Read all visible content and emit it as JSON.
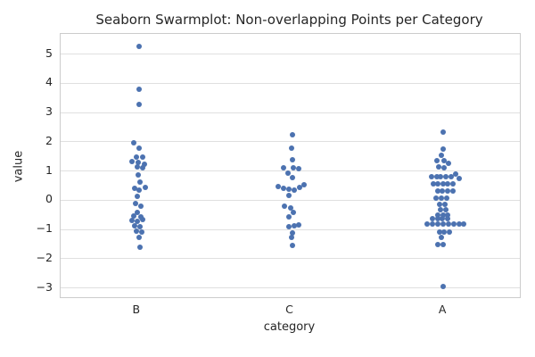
{
  "chart_data": {
    "type": "scatter",
    "variant": "seaborn-swarmplot",
    "title": "Seaborn Swarmplot: Non-overlapping Points per Category",
    "xlabel": "category",
    "ylabel": "value",
    "grid": true,
    "legend": false,
    "point_color": "#4c72b0",
    "grid_color": "#e0e0e0",
    "spine_color": "#cccccc",
    "text_color": "#262626",
    "ylim": [
      -3.32,
      5.69
    ],
    "yticks": [
      {
        "label": "5",
        "value": 5
      },
      {
        "label": "4",
        "value": 4
      },
      {
        "label": "3",
        "value": 3
      },
      {
        "label": "2",
        "value": 2
      },
      {
        "label": "1",
        "value": 1
      },
      {
        "label": "0",
        "value": 0
      },
      {
        "label": "−1",
        "value": -1
      },
      {
        "label": "−2",
        "value": -2
      },
      {
        "label": "−3",
        "value": -3
      }
    ],
    "categories": [
      "B",
      "C",
      "A"
    ],
    "series": [
      {
        "category": "B",
        "points": [
          [
            2,
            5.26
          ],
          [
            2,
            3.81
          ],
          [
            2,
            3.28
          ],
          [
            -4,
            1.97
          ],
          [
            2,
            1.78
          ],
          [
            -1,
            1.49
          ],
          [
            6,
            1.46
          ],
          [
            -6,
            1.31
          ],
          [
            1,
            1.28
          ],
          [
            8,
            1.22
          ],
          [
            0,
            1.15
          ],
          [
            6,
            1.1
          ],
          [
            1,
            0.86
          ],
          [
            3,
            0.63
          ],
          [
            -3,
            0.4
          ],
          [
            2,
            0.35
          ],
          [
            9,
            0.45
          ],
          [
            0,
            0.14
          ],
          [
            -2,
            -0.11
          ],
          [
            4,
            -0.21
          ],
          [
            0,
            -0.42
          ],
          [
            -4,
            -0.54
          ],
          [
            4,
            -0.56
          ],
          [
            -6,
            -0.7
          ],
          [
            0,
            -0.73
          ],
          [
            6,
            -0.66
          ],
          [
            -3,
            -0.88
          ],
          [
            3,
            -0.91
          ],
          [
            -1,
            -1.07
          ],
          [
            5,
            -1.1
          ],
          [
            2,
            -1.28
          ],
          [
            3,
            -1.6
          ]
        ]
      },
      {
        "category": "C",
        "points": [
          [
            2,
            2.25
          ],
          [
            1,
            1.78
          ],
          [
            2,
            1.37
          ],
          [
            -8,
            1.1
          ],
          [
            3,
            1.12
          ],
          [
            9,
            1.08
          ],
          [
            -3,
            0.92
          ],
          [
            2,
            0.77
          ],
          [
            -14,
            0.47
          ],
          [
            -8,
            0.42
          ],
          [
            -2,
            0.38
          ],
          [
            4,
            0.36
          ],
          [
            10,
            0.44
          ],
          [
            15,
            0.53
          ],
          [
            -2,
            0.17
          ],
          [
            -7,
            -0.2
          ],
          [
            0,
            -0.26
          ],
          [
            3,
            -0.41
          ],
          [
            -2,
            -0.57
          ],
          [
            -2,
            -0.92
          ],
          [
            4,
            -0.89
          ],
          [
            9,
            -0.84
          ],
          [
            2,
            -1.12
          ],
          [
            1,
            -1.28
          ],
          [
            2,
            -1.55
          ]
        ]
      },
      {
        "category": "A",
        "points": [
          [
            0,
            2.33
          ],
          [
            0,
            1.75
          ],
          [
            -2,
            1.54
          ],
          [
            -7,
            1.36
          ],
          [
            1,
            1.34
          ],
          [
            6,
            1.27
          ],
          [
            -5,
            1.13
          ],
          [
            1,
            1.1
          ],
          [
            -13,
            0.8
          ],
          [
            -7,
            0.8
          ],
          [
            -3,
            0.8
          ],
          [
            3,
            0.8
          ],
          [
            9,
            0.8
          ],
          [
            14,
            0.88
          ],
          [
            18,
            0.75
          ],
          [
            -11,
            0.57
          ],
          [
            -6,
            0.57
          ],
          [
            0,
            0.57
          ],
          [
            5,
            0.57
          ],
          [
            11,
            0.55
          ],
          [
            -6,
            0.3
          ],
          [
            -1,
            0.3
          ],
          [
            5,
            0.3
          ],
          [
            11,
            0.3
          ],
          [
            -8,
            0.08
          ],
          [
            -2,
            0.08
          ],
          [
            4,
            0.08
          ],
          [
            -4,
            -0.14
          ],
          [
            2,
            -0.14
          ],
          [
            -3,
            -0.33
          ],
          [
            3,
            -0.33
          ],
          [
            -6,
            -0.5
          ],
          [
            0,
            -0.5
          ],
          [
            5,
            -0.5
          ],
          [
            -12,
            -0.64
          ],
          [
            -6,
            -0.64
          ],
          [
            -1,
            -0.64
          ],
          [
            5,
            -0.64
          ],
          [
            -18,
            -0.82
          ],
          [
            -12,
            -0.82
          ],
          [
            -6,
            -0.82
          ],
          [
            0,
            -0.82
          ],
          [
            6,
            -0.82
          ],
          [
            12,
            -0.82
          ],
          [
            18,
            -0.82
          ],
          [
            23,
            -0.82
          ],
          [
            -4,
            -1.08
          ],
          [
            1,
            -1.08
          ],
          [
            7,
            -1.08
          ],
          [
            -2,
            -1.26
          ],
          [
            -6,
            -1.52
          ],
          [
            0,
            -1.52
          ],
          [
            0,
            -2.96
          ]
        ]
      }
    ]
  }
}
